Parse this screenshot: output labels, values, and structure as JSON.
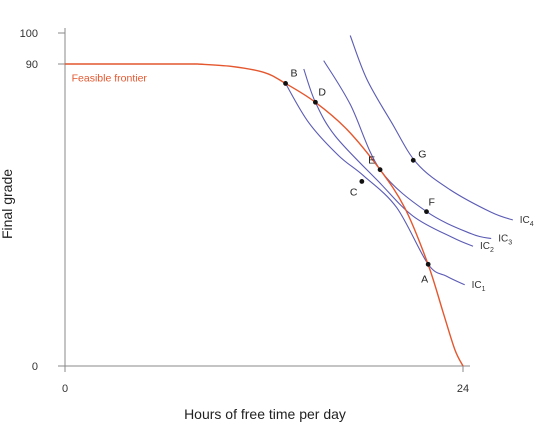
{
  "chart_data": {
    "type": "line",
    "xlabel": "Hours of free time per day",
    "ylabel": "Final grade",
    "xlim": [
      0,
      24
    ],
    "ylim": [
      0,
      100
    ],
    "x_ticks": [
      "0",
      "24"
    ],
    "y_ticks": [
      "0",
      "90",
      "100"
    ],
    "colors": {
      "frontier": "#e4572e",
      "indifference": "#5b5bb5",
      "axis": "#888888"
    },
    "frontier": {
      "name": "Feasible frontier",
      "points": [
        [
          0,
          90
        ],
        [
          8,
          90
        ],
        [
          10,
          89.3
        ],
        [
          12,
          87.5
        ],
        [
          13.3,
          84.2
        ],
        [
          15.1,
          78.6
        ],
        [
          17,
          70.5
        ],
        [
          19,
          58.5
        ],
        [
          20.5,
          47
        ],
        [
          21.9,
          30.2
        ],
        [
          22.8,
          16
        ],
        [
          23.5,
          5
        ],
        [
          24,
          0
        ]
      ]
    },
    "indifference_curves": [
      {
        "name": "IC",
        "sub": "1",
        "points": [
          [
            13.3,
            84.2
          ],
          [
            14.7,
            72.5
          ],
          [
            16.5,
            62.7
          ],
          [
            18,
            56.7
          ],
          [
            20,
            47.2
          ],
          [
            21.9,
            30.3
          ],
          [
            23,
            26.8
          ],
          [
            24.1,
            24.2
          ]
        ]
      },
      {
        "name": "IC",
        "sub": "2",
        "points": [
          [
            14.4,
            88.5
          ],
          [
            15.1,
            78.6
          ],
          [
            16.3,
            68.5
          ],
          [
            18.9,
            55
          ],
          [
            21,
            44.6
          ],
          [
            23.4,
            38.2
          ],
          [
            24.6,
            35.7
          ]
        ]
      },
      {
        "name": "IC",
        "sub": "3",
        "points": [
          [
            15.6,
            91
          ],
          [
            17.2,
            78
          ],
          [
            19,
            58.5
          ],
          [
            21.8,
            46
          ],
          [
            24.5,
            39.4
          ],
          [
            25.7,
            38
          ]
        ]
      },
      {
        "name": "IC",
        "sub": "4",
        "points": [
          [
            17.2,
            98.5
          ],
          [
            18.2,
            85.5
          ],
          [
            19.7,
            72.5
          ],
          [
            21.2,
            60.5
          ],
          [
            23.2,
            52.6
          ],
          [
            25.7,
            45.8
          ],
          [
            27,
            43.5
          ]
        ]
      }
    ],
    "points": [
      {
        "label": "A",
        "x": 21.9,
        "y": 30.3
      },
      {
        "label": "B",
        "x": 13.3,
        "y": 84.2
      },
      {
        "label": "C",
        "x": 17.9,
        "y": 55
      },
      {
        "label": "D",
        "x": 15.1,
        "y": 78.6
      },
      {
        "label": "E",
        "x": 19,
        "y": 58.5
      },
      {
        "label": "F",
        "x": 21.8,
        "y": 46
      },
      {
        "label": "G",
        "x": 21,
        "y": 61.3
      }
    ]
  }
}
